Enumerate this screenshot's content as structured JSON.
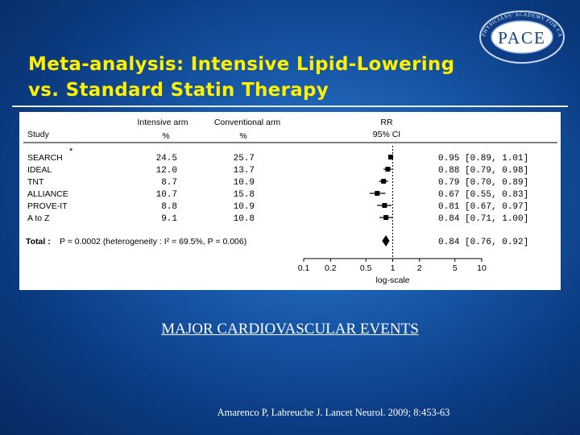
{
  "slide": {
    "title_line1": "Meta-analysis: Intensive Lipid-Lowering",
    "title_line2": "vs. Standard Statin Therapy",
    "caption": "MAJOR CARDIOVASCULAR EVENTS",
    "citation": "Amarenco P, Labreuche J. Lancet Neurol. 2009; 8:453-63"
  },
  "logo": {
    "text": "PACE",
    "arc_text": "PHYSICIANS' ACADEMY FOR CARDIOVASCULAR EDUCATION"
  },
  "colors": {
    "title": "#fff000",
    "background": "#1757a8",
    "panel": "#ffffff",
    "marker": "#000000"
  },
  "chart_data": {
    "type": "forest",
    "headers": {
      "study": "Study",
      "intensive": "Intensive arm",
      "intensive_unit": "%",
      "conventional": "Conventional arm",
      "conventional_unit": "%",
      "rr": "RR",
      "ci": "95% CI"
    },
    "footnote_mark": "*",
    "studies": [
      {
        "name": "SEARCH",
        "intensive": "24.5",
        "conventional": "25.7",
        "rr": 0.95,
        "lo": 0.89,
        "hi": 1.01,
        "label": "0.95 [0.89, 1.01]"
      },
      {
        "name": "IDEAL",
        "intensive": "12.0",
        "conventional": "13.7",
        "rr": 0.88,
        "lo": 0.79,
        "hi": 0.98,
        "label": "0.88 [0.79, 0.98]"
      },
      {
        "name": "TNT",
        "intensive": "8.7",
        "conventional": "10.9",
        "rr": 0.79,
        "lo": 0.7,
        "hi": 0.89,
        "label": "0.79 [0.70, 0.89]"
      },
      {
        "name": "ALLIANCE",
        "intensive": "10.7",
        "conventional": "15.8",
        "rr": 0.67,
        "lo": 0.55,
        "hi": 0.83,
        "label": "0.67 [0.55, 0.83]"
      },
      {
        "name": "PROVE-IT",
        "intensive": "8.8",
        "conventional": "10.9",
        "rr": 0.81,
        "lo": 0.67,
        "hi": 0.97,
        "label": "0.81 [0.67, 0.97]"
      },
      {
        "name": "A to Z",
        "intensive": "9.1",
        "conventional": "10.8",
        "rr": 0.84,
        "lo": 0.71,
        "hi": 1.0,
        "label": "0.84 [0.71, 1.00]"
      }
    ],
    "total": {
      "label": "Total :",
      "stats": "P = 0.0002 (heterogeneity : I² = 69.5%, P = 0.006)",
      "rr": 0.84,
      "lo": 0.76,
      "hi": 0.92,
      "ci_label": "0.84 [0.76, 0.92]"
    },
    "x_axis": {
      "scale": "log",
      "ticks": [
        0.1,
        0.2,
        0.5,
        1,
        2,
        5,
        10
      ],
      "tick_labels": [
        "0.1",
        "0.2",
        "0.5",
        "1",
        "2",
        "5",
        "10"
      ],
      "label": "log-scale",
      "reference_line": 1
    }
  }
}
